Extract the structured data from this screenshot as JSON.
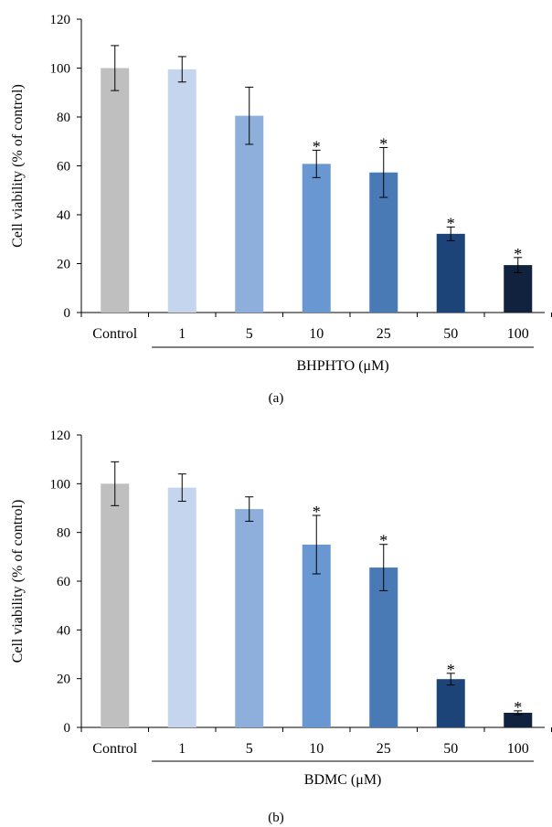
{
  "colors": [
    "#bfbfbf",
    "#c5d5ed",
    "#8eafdb",
    "#6997d2",
    "#4a7ab5",
    "#1c4478",
    "#10223d"
  ],
  "chart_data": [
    {
      "panel_label": "(a)",
      "type": "bar",
      "categories": [
        "Control",
        "1",
        "5",
        "10",
        "25",
        "50",
        "100"
      ],
      "values": [
        100,
        99.5,
        80.5,
        60.8,
        57.3,
        32.2,
        19.4
      ],
      "errors": [
        9.2,
        5.2,
        11.7,
        5.6,
        10.2,
        2.8,
        3.1
      ],
      "significant": [
        false,
        false,
        false,
        true,
        true,
        true,
        true
      ],
      "marker": "*",
      "xlabel": "BHPHTO (μM)",
      "ylabel": "Cell viability (% of control)",
      "ylim": [
        0,
        120
      ],
      "yticks": [
        0,
        20,
        40,
        60,
        80,
        100,
        120
      ]
    },
    {
      "panel_label": "(b)",
      "type": "bar",
      "categories": [
        "Control",
        "1",
        "5",
        "10",
        "25",
        "50",
        "100"
      ],
      "values": [
        100,
        98.4,
        89.6,
        75.0,
        65.6,
        19.8,
        6.0
      ],
      "errors": [
        9.0,
        5.6,
        5.0,
        12.0,
        9.5,
        2.4,
        0.8
      ],
      "significant": [
        false,
        false,
        false,
        true,
        true,
        true,
        true
      ],
      "marker": "*",
      "xlabel": "BDMC (μM)",
      "ylabel": "Cell viability (% of control)",
      "ylim": [
        0,
        120
      ],
      "yticks": [
        0,
        20,
        40,
        60,
        80,
        100,
        120
      ]
    }
  ]
}
